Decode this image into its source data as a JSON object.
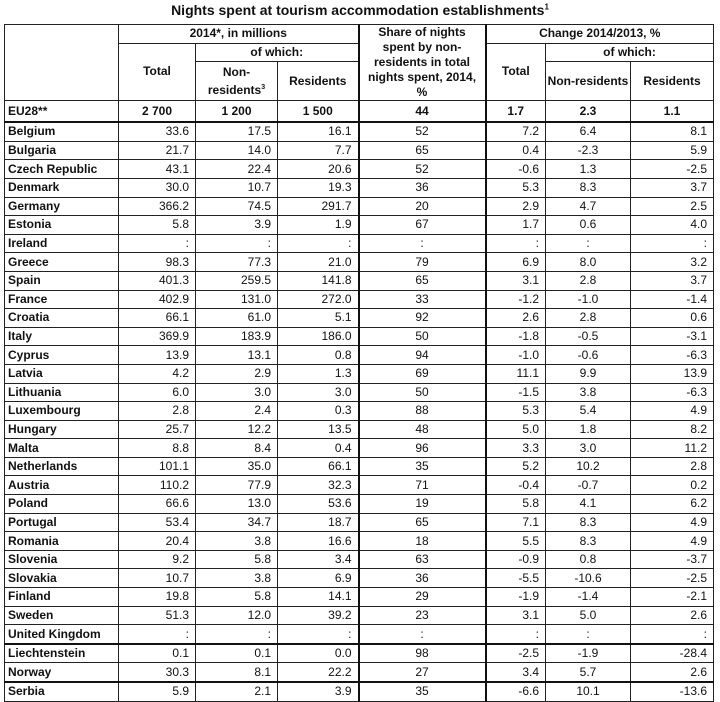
{
  "title": "Nights spent at tourism accommodation establishments",
  "title_footnote": "1",
  "header": {
    "group_2014": "2014*, in millions",
    "of_which": "of which:",
    "total": "Total",
    "non_residents": "Non-residents",
    "non_residents_footnote": "3",
    "residents": "Residents",
    "share": "Share of nights spent by non-residents in total nights spent, 2014, %",
    "group_change": "Change 2014/2013, %",
    "change_total": "Total",
    "change_non_residents": "Non-residents",
    "change_residents": "Residents"
  },
  "rows": [
    {
      "country": "EU28**",
      "total": "2 700",
      "nonres": "1 200",
      "res": "1 500",
      "share": "44",
      "ch_total": "1.7",
      "ch_nonres": "2.3",
      "ch_res": "1.1"
    },
    {
      "country": "Belgium",
      "total": "33.6",
      "nonres": "17.5",
      "res": "16.1",
      "share": "52",
      "ch_total": "7.2",
      "ch_nonres": "6.4",
      "ch_res": "8.1"
    },
    {
      "country": "Bulgaria",
      "total": "21.7",
      "nonres": "14.0",
      "res": "7.7",
      "share": "65",
      "ch_total": "0.4",
      "ch_nonres": "-2.3",
      "ch_res": "5.9"
    },
    {
      "country": "Czech Republic",
      "total": "43.1",
      "nonres": "22.4",
      "res": "20.6",
      "share": "52",
      "ch_total": "-0.6",
      "ch_nonres": "1.3",
      "ch_res": "-2.5"
    },
    {
      "country": "Denmark",
      "total": "30.0",
      "nonres": "10.7",
      "res": "19.3",
      "share": "36",
      "ch_total": "5.3",
      "ch_nonres": "8.3",
      "ch_res": "3.7"
    },
    {
      "country": "Germany",
      "total": "366.2",
      "nonres": "74.5",
      "res": "291.7",
      "share": "20",
      "ch_total": "2.9",
      "ch_nonres": "4.7",
      "ch_res": "2.5"
    },
    {
      "country": "Estonia",
      "total": "5.8",
      "nonres": "3.9",
      "res": "1.9",
      "share": "67",
      "ch_total": "1.7",
      "ch_nonres": "0.6",
      "ch_res": "4.0"
    },
    {
      "country": "Ireland",
      "total": ":",
      "nonres": ":",
      "res": ":",
      "share": ":",
      "ch_total": ":",
      "ch_nonres": ":",
      "ch_res": ":"
    },
    {
      "country": "Greece",
      "total": "98.3",
      "nonres": "77.3",
      "res": "21.0",
      "share": "79",
      "ch_total": "6.9",
      "ch_nonres": "8.0",
      "ch_res": "3.2"
    },
    {
      "country": "Spain",
      "total": "401.3",
      "nonres": "259.5",
      "res": "141.8",
      "share": "65",
      "ch_total": "3.1",
      "ch_nonres": "2.8",
      "ch_res": "3.7"
    },
    {
      "country": "France",
      "total": "402.9",
      "nonres": "131.0",
      "res": "272.0",
      "share": "33",
      "ch_total": "-1.2",
      "ch_nonres": "-1.0",
      "ch_res": "-1.4"
    },
    {
      "country": "Croatia",
      "total": "66.1",
      "nonres": "61.0",
      "res": "5.1",
      "share": "92",
      "ch_total": "2.6",
      "ch_nonres": "2.8",
      "ch_res": "0.6"
    },
    {
      "country": "Italy",
      "total": "369.9",
      "nonres": "183.9",
      "res": "186.0",
      "share": "50",
      "ch_total": "-1.8",
      "ch_nonres": "-0.5",
      "ch_res": "-3.1"
    },
    {
      "country": "Cyprus",
      "total": "13.9",
      "nonres": "13.1",
      "res": "0.8",
      "share": "94",
      "ch_total": "-1.0",
      "ch_nonres": "-0.6",
      "ch_res": "-6.3"
    },
    {
      "country": "Latvia",
      "total": "4.2",
      "nonres": "2.9",
      "res": "1.3",
      "share": "69",
      "ch_total": "11.1",
      "ch_nonres": "9.9",
      "ch_res": "13.9"
    },
    {
      "country": "Lithuania",
      "total": "6.0",
      "nonres": "3.0",
      "res": "3.0",
      "share": "50",
      "ch_total": "-1.5",
      "ch_nonres": "3.8",
      "ch_res": "-6.3"
    },
    {
      "country": "Luxembourg",
      "total": "2.8",
      "nonres": "2.4",
      "res": "0.3",
      "share": "88",
      "ch_total": "5.3",
      "ch_nonres": "5.4",
      "ch_res": "4.9"
    },
    {
      "country": "Hungary",
      "total": "25.7",
      "nonres": "12.2",
      "res": "13.5",
      "share": "48",
      "ch_total": "5.0",
      "ch_nonres": "1.8",
      "ch_res": "8.2"
    },
    {
      "country": "Malta",
      "total": "8.8",
      "nonres": "8.4",
      "res": "0.4",
      "share": "96",
      "ch_total": "3.3",
      "ch_nonres": "3.0",
      "ch_res": "11.2"
    },
    {
      "country": "Netherlands",
      "total": "101.1",
      "nonres": "35.0",
      "res": "66.1",
      "share": "35",
      "ch_total": "5.2",
      "ch_nonres": "10.2",
      "ch_res": "2.8"
    },
    {
      "country": "Austria",
      "total": "110.2",
      "nonres": "77.9",
      "res": "32.3",
      "share": "71",
      "ch_total": "-0.4",
      "ch_nonres": "-0.7",
      "ch_res": "0.2"
    },
    {
      "country": "Poland",
      "total": "66.6",
      "nonres": "13.0",
      "res": "53.6",
      "share": "19",
      "ch_total": "5.8",
      "ch_nonres": "4.1",
      "ch_res": "6.2"
    },
    {
      "country": "Portugal",
      "total": "53.4",
      "nonres": "34.7",
      "res": "18.7",
      "share": "65",
      "ch_total": "7.1",
      "ch_nonres": "8.3",
      "ch_res": "4.9"
    },
    {
      "country": "Romania",
      "total": "20.4",
      "nonres": "3.8",
      "res": "16.6",
      "share": "18",
      "ch_total": "5.5",
      "ch_nonres": "8.3",
      "ch_res": "4.9"
    },
    {
      "country": "Slovenia",
      "total": "9.2",
      "nonres": "5.8",
      "res": "3.4",
      "share": "63",
      "ch_total": "-0.9",
      "ch_nonres": "0.8",
      "ch_res": "-3.7"
    },
    {
      "country": "Slovakia",
      "total": "10.7",
      "nonres": "3.8",
      "res": "6.9",
      "share": "36",
      "ch_total": "-5.5",
      "ch_nonres": "-10.6",
      "ch_res": "-2.5"
    },
    {
      "country": "Finland",
      "total": "19.8",
      "nonres": "5.8",
      "res": "14.1",
      "share": "29",
      "ch_total": "-1.9",
      "ch_nonres": "-1.4",
      "ch_res": "-2.1"
    },
    {
      "country": "Sweden",
      "total": "51.3",
      "nonres": "12.0",
      "res": "39.2",
      "share": "23",
      "ch_total": "3.1",
      "ch_nonres": "5.0",
      "ch_res": "2.6"
    },
    {
      "country": "United Kingdom",
      "total": ":",
      "nonres": ":",
      "res": ":",
      "share": ":",
      "ch_total": ":",
      "ch_nonres": ":",
      "ch_res": ":"
    },
    {
      "country": "Liechtenstein",
      "total": "0.1",
      "nonres": "0.1",
      "res": "0.0",
      "share": "98",
      "ch_total": "-2.5",
      "ch_nonres": "-1.9",
      "ch_res": "-28.4"
    },
    {
      "country": "Norway",
      "total": "30.3",
      "nonres": "8.1",
      "res": "22.2",
      "share": "27",
      "ch_total": "3.4",
      "ch_nonres": "5.7",
      "ch_res": "2.6"
    },
    {
      "country": "Serbia",
      "total": "5.9",
      "nonres": "2.1",
      "res": "3.9",
      "share": "35",
      "ch_total": "-6.6",
      "ch_nonres": "10.1",
      "ch_res": "-13.6"
    }
  ]
}
